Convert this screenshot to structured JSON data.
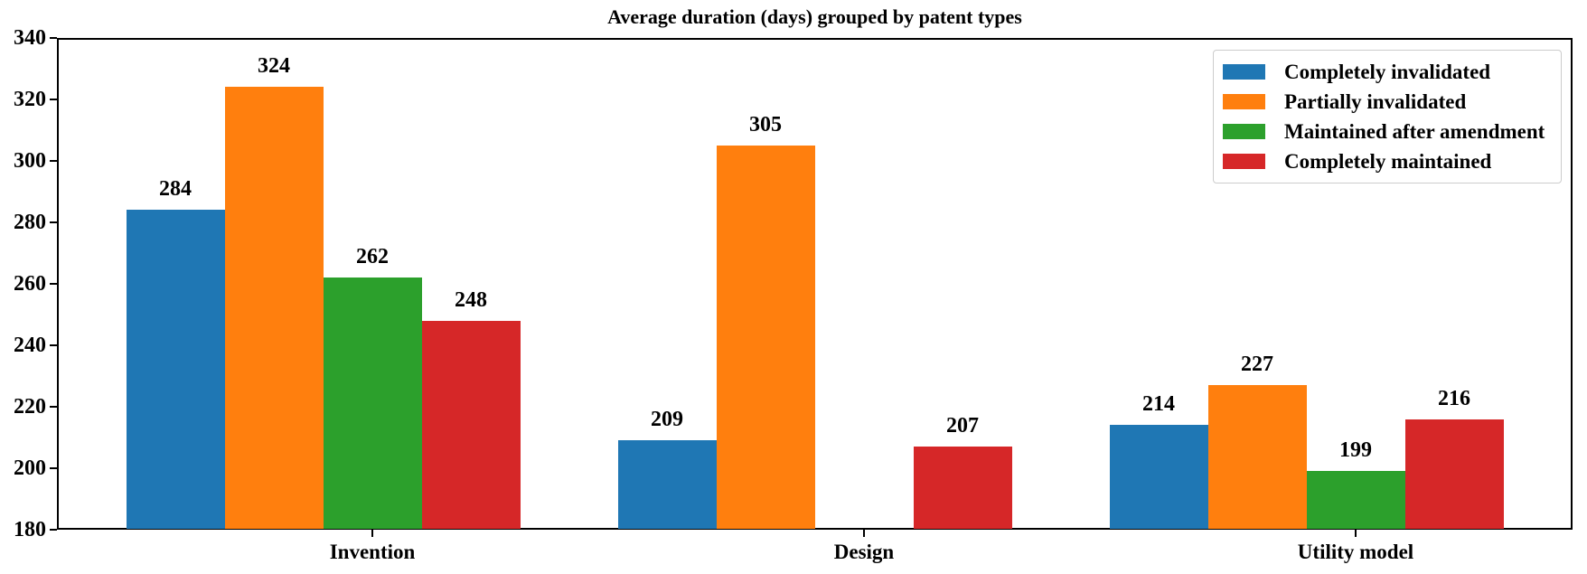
{
  "chart_data": {
    "type": "bar",
    "title": "Average duration (days) grouped by patent types",
    "categories": [
      "Invention",
      "Design",
      "Utility model"
    ],
    "series": [
      {
        "name": "Completely invalidated",
        "color": "#1f77b4",
        "values": [
          284,
          209,
          214
        ]
      },
      {
        "name": "Partially invalidated",
        "color": "#ff7f0e",
        "values": [
          324,
          305,
          227
        ]
      },
      {
        "name": "Maintained after amendment",
        "color": "#2ca02c",
        "values": [
          262,
          null,
          199
        ]
      },
      {
        "name": "Completely maintained",
        "color": "#d62728",
        "values": [
          248,
          207,
          216
        ]
      }
    ],
    "ylim": [
      180,
      340
    ],
    "yticks": [
      180,
      200,
      220,
      240,
      260,
      280,
      300,
      320,
      340
    ],
    "xlabel": "",
    "ylabel": "",
    "grid": false,
    "legend_position": "upper right",
    "bar_value_labels": true,
    "axis_color": "#000000",
    "background_color": "#ffffff"
  }
}
